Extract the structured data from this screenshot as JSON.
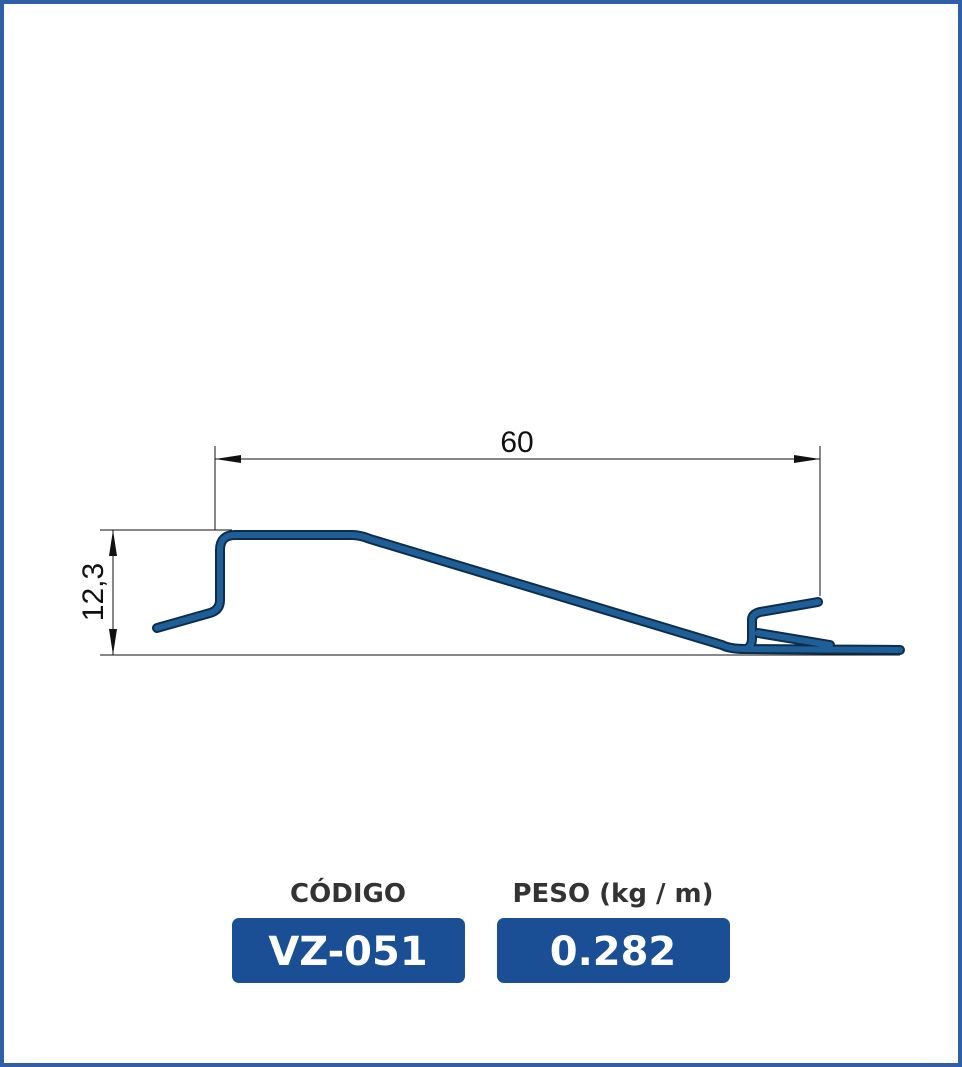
{
  "dimensions": {
    "width": "60",
    "height": "12,3"
  },
  "codigo": {
    "label": "CÓDIGO",
    "value": "VZ-051"
  },
  "peso": {
    "label": "PESO (kg / m)",
    "value": "0.282"
  }
}
